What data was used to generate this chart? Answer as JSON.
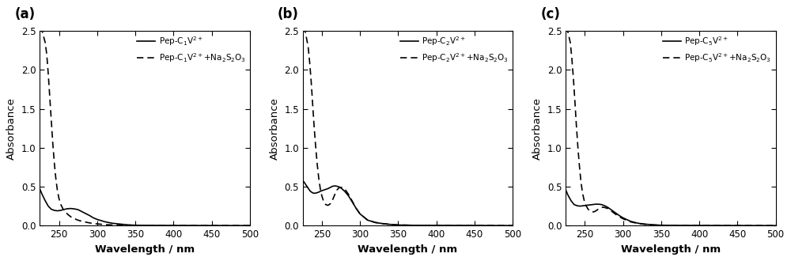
{
  "panels": [
    {
      "label": "(a)",
      "legend_solid": "Pep-C$_1$V$^{2+}$",
      "legend_dashed": "Pep-C$_1$V$^{2+}$+Na$_2$S$_2$O$_3$",
      "solid": {
        "x": [
          225,
          228,
          232,
          236,
          240,
          244,
          248,
          252,
          256,
          260,
          265,
          270,
          275,
          280,
          285,
          290,
          295,
          300,
          310,
          320,
          330,
          340,
          350,
          370,
          400,
          450,
          500
        ],
        "y": [
          0.47,
          0.4,
          0.32,
          0.25,
          0.21,
          0.195,
          0.19,
          0.195,
          0.205,
          0.215,
          0.22,
          0.215,
          0.205,
          0.18,
          0.155,
          0.13,
          0.1,
          0.08,
          0.05,
          0.03,
          0.02,
          0.01,
          0.005,
          0.003,
          0.002,
          0.001,
          0.0
        ]
      },
      "dashed": {
        "x": [
          225,
          228,
          232,
          234,
          236,
          238,
          240,
          242,
          244,
          246,
          248,
          250,
          252,
          255,
          258,
          262,
          266,
          270,
          275,
          280,
          285,
          290,
          295,
          300,
          310,
          320,
          330,
          340,
          350,
          370,
          400,
          450,
          500
        ],
        "y": [
          2.55,
          2.5,
          2.35,
          2.2,
          1.95,
          1.65,
          1.35,
          1.05,
          0.8,
          0.6,
          0.45,
          0.35,
          0.28,
          0.22,
          0.18,
          0.14,
          0.11,
          0.09,
          0.07,
          0.055,
          0.045,
          0.035,
          0.028,
          0.022,
          0.013,
          0.008,
          0.005,
          0.003,
          0.002,
          0.001,
          0.001,
          0.0005,
          0.0
        ]
      }
    },
    {
      "label": "(b)",
      "legend_solid": "Pep-C$_2$V$^{2+}$",
      "legend_dashed": "Pep-C$_2$V$^{2+}$+Na$_2$S$_2$O$_3$",
      "solid": {
        "x": [
          225,
          228,
          232,
          235,
          238,
          240,
          243,
          246,
          249,
          252,
          255,
          258,
          261,
          264,
          267,
          270,
          273,
          276,
          280,
          285,
          290,
          295,
          300,
          310,
          320,
          330,
          340,
          350,
          370,
          400,
          450,
          500
        ],
        "y": [
          0.58,
          0.54,
          0.48,
          0.44,
          0.42,
          0.415,
          0.42,
          0.43,
          0.445,
          0.455,
          0.465,
          0.475,
          0.49,
          0.505,
          0.51,
          0.505,
          0.495,
          0.475,
          0.44,
          0.38,
          0.3,
          0.22,
          0.15,
          0.07,
          0.04,
          0.025,
          0.015,
          0.008,
          0.004,
          0.003,
          0.002,
          0.0
        ]
      },
      "dashed": {
        "x": [
          225,
          228,
          232,
          234,
          236,
          238,
          240,
          242,
          244,
          246,
          248,
          250,
          252,
          255,
          258,
          261,
          264,
          267,
          270,
          273,
          276,
          280,
          285,
          290,
          295,
          300,
          310,
          320,
          330,
          340,
          350,
          370,
          400,
          450,
          500
        ],
        "y": [
          2.55,
          2.5,
          2.3,
          2.1,
          1.85,
          1.55,
          1.25,
          1.0,
          0.78,
          0.6,
          0.47,
          0.38,
          0.32,
          0.27,
          0.26,
          0.28,
          0.33,
          0.4,
          0.46,
          0.49,
          0.49,
          0.47,
          0.4,
          0.31,
          0.22,
          0.15,
          0.07,
          0.04,
          0.025,
          0.015,
          0.008,
          0.004,
          0.003,
          0.002,
          0.0
        ]
      }
    },
    {
      "label": "(c)",
      "legend_solid": "Pep-C$_5$V$^{2+}$",
      "legend_dashed": "Pep-C$_5$V$^{2+}$+Na$_2$S$_2$O$_3$",
      "solid": {
        "x": [
          225,
          228,
          232,
          236,
          240,
          244,
          248,
          252,
          256,
          260,
          264,
          268,
          272,
          276,
          280,
          285,
          290,
          295,
          300,
          310,
          320,
          330,
          340,
          350,
          370,
          400,
          450,
          500
        ],
        "y": [
          0.46,
          0.39,
          0.32,
          0.27,
          0.255,
          0.25,
          0.255,
          0.26,
          0.265,
          0.27,
          0.275,
          0.275,
          0.27,
          0.255,
          0.235,
          0.2,
          0.165,
          0.13,
          0.1,
          0.055,
          0.03,
          0.018,
          0.01,
          0.005,
          0.003,
          0.002,
          0.001,
          0.0
        ]
      },
      "dashed": {
        "x": [
          225,
          228,
          231,
          233,
          235,
          237,
          239,
          241,
          243,
          245,
          247,
          249,
          251,
          254,
          257,
          260,
          263,
          266,
          269,
          272,
          275,
          280,
          285,
          290,
          295,
          300,
          310,
          320,
          330,
          340,
          350,
          370,
          400,
          450,
          500
        ],
        "y": [
          2.55,
          2.48,
          2.35,
          2.15,
          1.9,
          1.6,
          1.28,
          1.0,
          0.76,
          0.56,
          0.42,
          0.33,
          0.27,
          0.215,
          0.185,
          0.175,
          0.18,
          0.2,
          0.22,
          0.235,
          0.235,
          0.22,
          0.185,
          0.148,
          0.115,
          0.088,
          0.048,
          0.026,
          0.015,
          0.008,
          0.004,
          0.002,
          0.001,
          0.0005,
          0.0
        ]
      }
    }
  ],
  "xlim": [
    225,
    500
  ],
  "ylim": [
    0.0,
    2.5
  ],
  "xticks": [
    250,
    300,
    350,
    400,
    450,
    500
  ],
  "yticks": [
    0.0,
    0.5,
    1.0,
    1.5,
    2.0,
    2.5
  ],
  "xlabel": "Wavelength / nm",
  "ylabel": "Absorbance",
  "line_color": "#000000",
  "bg_color": "#ffffff",
  "figsize": [
    10.0,
    3.3
  ],
  "dpi": 100
}
